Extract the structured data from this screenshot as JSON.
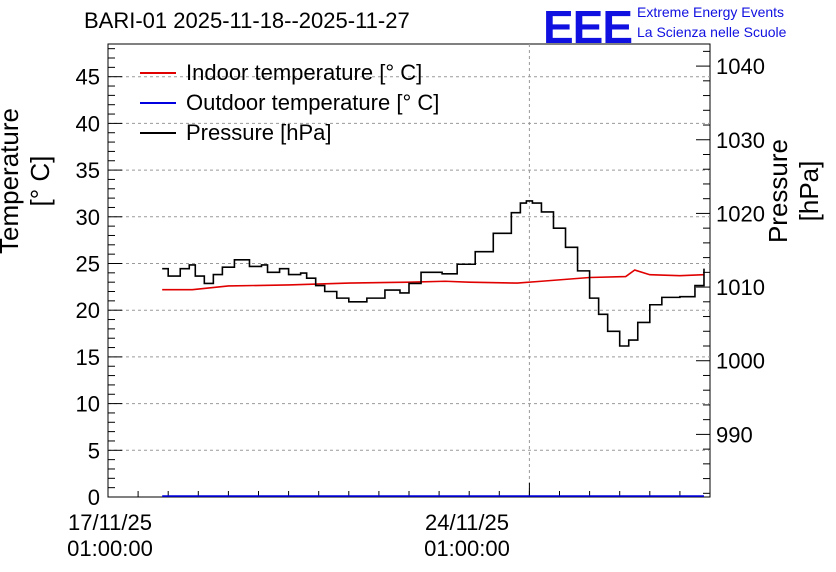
{
  "chart_data": {
    "type": "line",
    "title": "BARI-01 2025-11-18--2025-11-27",
    "ylabel_left": "Temperature [° C]",
    "ylabel_right": "Pressure [hPa]",
    "left_axis": {
      "range": [
        0,
        48.5
      ],
      "ticks": [
        0,
        5,
        10,
        15,
        20,
        25,
        30,
        35,
        40,
        45
      ]
    },
    "right_axis": {
      "range": [
        981.5,
        1043
      ],
      "ticks": [
        990,
        1000,
        1010,
        1020,
        1030,
        1040
      ]
    },
    "x_range_days": [
      0,
      10
    ],
    "x_ticks": [
      {
        "day": 0,
        "date": "17/11/25",
        "time": "01:00:00"
      },
      {
        "day": 7,
        "date": "24/11/25",
        "time": "01:00:00"
      }
    ],
    "legend": [
      {
        "label": "Indoor temperature [° C]",
        "color": "#e00000"
      },
      {
        "label": "Outdoor temperature [° C]",
        "color": "#0000e0"
      },
      {
        "label": "Pressure [hPa]",
        "color": "#000000"
      }
    ],
    "series": [
      {
        "name": "Indoor temperature [° C]",
        "axis": "left",
        "color": "#e00000",
        "points": [
          [
            0.9,
            22.2
          ],
          [
            1.4,
            22.2
          ],
          [
            2.0,
            22.6
          ],
          [
            3.0,
            22.7
          ],
          [
            4.0,
            22.9
          ],
          [
            5.0,
            23.0
          ],
          [
            5.6,
            23.1
          ],
          [
            6.0,
            23.0
          ],
          [
            6.8,
            22.9
          ],
          [
            7.2,
            23.1
          ],
          [
            8.0,
            23.5
          ],
          [
            8.6,
            23.6
          ],
          [
            8.75,
            24.3
          ],
          [
            9.0,
            23.8
          ],
          [
            9.5,
            23.7
          ],
          [
            9.9,
            23.8
          ]
        ]
      },
      {
        "name": "Outdoor temperature [° C]",
        "axis": "left",
        "color": "#0000e0",
        "points": [
          [
            0.9,
            0.1
          ],
          [
            9.9,
            0.1
          ]
        ]
      },
      {
        "name": "Pressure [hPa]",
        "axis": "right",
        "color": "#000000",
        "points": [
          [
            0.9,
            1012.5
          ],
          [
            1.0,
            1011.5
          ],
          [
            1.2,
            1012.5
          ],
          [
            1.35,
            1013.0
          ],
          [
            1.45,
            1011.5
          ],
          [
            1.6,
            1010.5
          ],
          [
            1.75,
            1011.7
          ],
          [
            1.9,
            1012.7
          ],
          [
            2.1,
            1013.7
          ],
          [
            2.35,
            1012.8
          ],
          [
            2.55,
            1013.0
          ],
          [
            2.65,
            1012.0
          ],
          [
            2.85,
            1012.5
          ],
          [
            3.0,
            1011.7
          ],
          [
            3.2,
            1011.9
          ],
          [
            3.3,
            1011.2
          ],
          [
            3.45,
            1010.2
          ],
          [
            3.6,
            1009.4
          ],
          [
            3.8,
            1008.5
          ],
          [
            4.0,
            1008.0
          ],
          [
            4.3,
            1008.5
          ],
          [
            4.6,
            1009.6
          ],
          [
            4.85,
            1009.2
          ],
          [
            5.0,
            1010.5
          ],
          [
            5.2,
            1012.0
          ],
          [
            5.4,
            1012.0
          ],
          [
            5.55,
            1011.8
          ],
          [
            5.8,
            1013.1
          ],
          [
            6.1,
            1014.8
          ],
          [
            6.4,
            1017.3
          ],
          [
            6.7,
            1020.1
          ],
          [
            6.85,
            1021.4
          ],
          [
            6.95,
            1021.7
          ],
          [
            7.05,
            1021.4
          ],
          [
            7.2,
            1020.2
          ],
          [
            7.4,
            1018.0
          ],
          [
            7.6,
            1015.4
          ],
          [
            7.8,
            1012.2
          ],
          [
            8.0,
            1008.5
          ],
          [
            8.15,
            1006.3
          ],
          [
            8.3,
            1004.0
          ],
          [
            8.5,
            1002.0
          ],
          [
            8.65,
            1002.8
          ],
          [
            8.8,
            1005.2
          ],
          [
            9.0,
            1007.6
          ],
          [
            9.2,
            1008.6
          ],
          [
            9.5,
            1008.7
          ],
          [
            9.75,
            1010.2
          ],
          [
            9.9,
            1012.5
          ]
        ]
      }
    ]
  }
}
